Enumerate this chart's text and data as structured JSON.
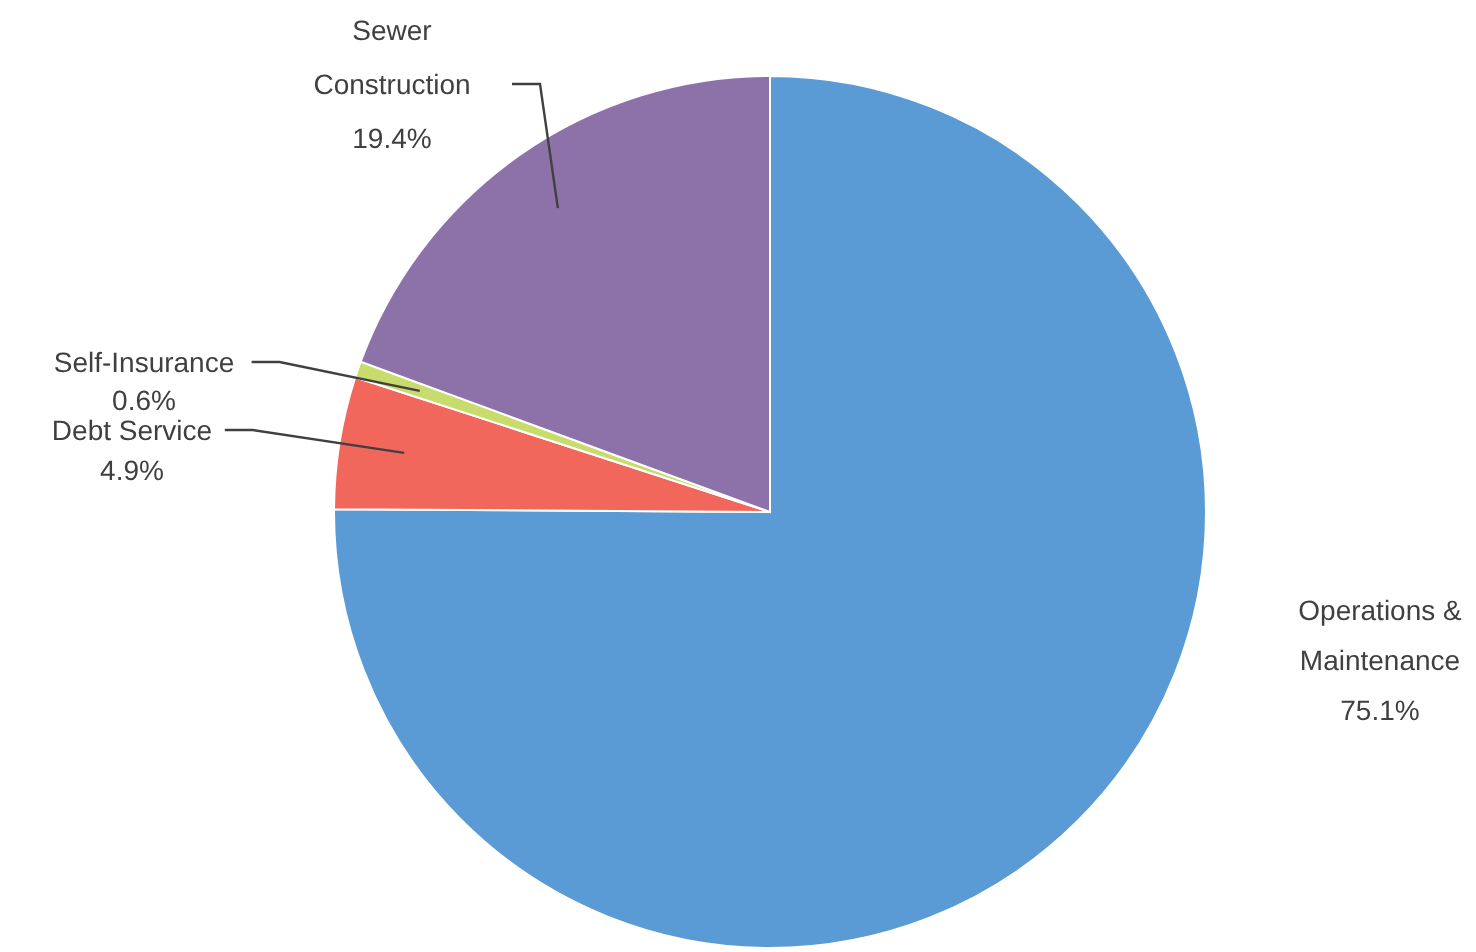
{
  "chart_data": {
    "type": "pie",
    "categories": [
      "Operations & Maintenance",
      "Debt Service",
      "Self-Insurance",
      "Sewer Construction"
    ],
    "values": [
      75.1,
      4.9,
      0.6,
      19.4
    ],
    "colors": [
      "#5b9bd5",
      "#f2675c",
      "#c8dc6e",
      "#8c72a8"
    ],
    "value_labels": [
      "75.1%",
      "4.9%",
      "0.6%",
      "19.4%"
    ]
  }
}
